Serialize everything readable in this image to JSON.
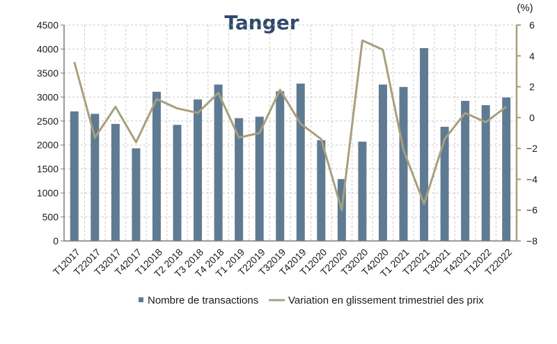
{
  "chart_data": {
    "type": "bar",
    "title": "Tanger",
    "categories": [
      "T12017",
      "T22017",
      "T32017",
      "T42017",
      "T12018",
      "T2 2018",
      "T3 2018",
      "T4 2018",
      "T1 2019",
      "T22019",
      "T32019",
      "T42019",
      "T12020",
      "T22020",
      "T32020",
      "T42020",
      "T1 2021",
      "T22021",
      "T32021",
      "T42021",
      "T12022",
      "T22022"
    ],
    "series": [
      {
        "name": "Nombre de transactions",
        "type": "bar",
        "axis": "left",
        "color": "#5f7b93",
        "values": [
          2700,
          2650,
          2440,
          1930,
          3110,
          2420,
          2950,
          3260,
          2560,
          2590,
          3120,
          3280,
          2100,
          1290,
          2070,
          3260,
          3210,
          4020,
          2380,
          2920,
          2830,
          2990
        ]
      },
      {
        "name": "Variation en glissement trimestriel des prix",
        "type": "line",
        "axis": "right",
        "color": "#a89f7c",
        "values": [
          3.6,
          -1.3,
          0.7,
          -1.6,
          1.2,
          0.6,
          0.3,
          1.6,
          -1.3,
          -1.0,
          1.8,
          -0.4,
          -1.4,
          -6.0,
          5.0,
          4.4,
          -2.1,
          -5.6,
          -1.4,
          0.3,
          -0.3,
          0.7
        ]
      }
    ],
    "y_left": {
      "min": 0,
      "max": 4500,
      "ticks": [
        0,
        500,
        1000,
        1500,
        2000,
        2500,
        3000,
        3500,
        4000,
        4500
      ]
    },
    "y_right": {
      "min": -8,
      "max": 6,
      "ticks": [
        -8,
        -6,
        -4,
        -2,
        0,
        2,
        4,
        6
      ],
      "unit": "(%)"
    },
    "grid": true,
    "legend_position": "bottom"
  }
}
